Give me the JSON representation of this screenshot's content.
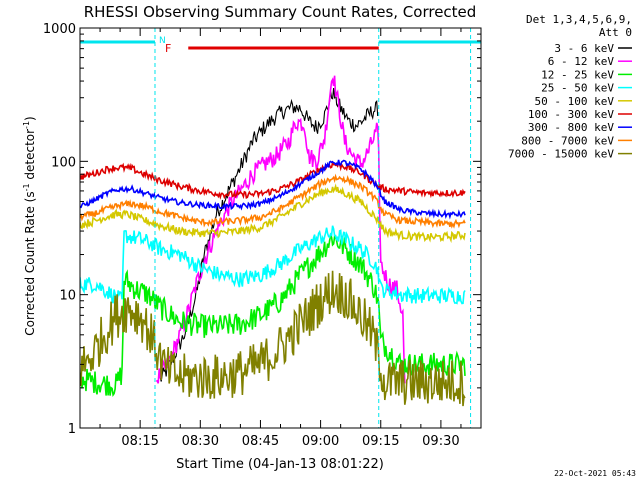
{
  "chart_data": {
    "type": "line",
    "title": "RHESSI Observing Summary Count Rates, Corrected",
    "xlabel": "Start Time (04-Jan-13 08:01:22)",
    "ylabel_main": "Corrected Count Rate (s",
    "ylabel_sup1": "-1",
    "ylabel_mid": " detector",
    "ylabel_sup2": "-1",
    "ylabel_end": ")",
    "x_unit": "minutes after 08:00 UT",
    "xlim": [
      0,
      100
    ],
    "x_ticks": [
      {
        "value": 15,
        "label": "08:15"
      },
      {
        "value": 30,
        "label": "08:30"
      },
      {
        "value": 45,
        "label": "08:45"
      },
      {
        "value": 60,
        "label": "09:00"
      },
      {
        "value": 75,
        "label": "09:15"
      },
      {
        "value": 90,
        "label": "09:30"
      }
    ],
    "y_scale": "log",
    "ylim": [
      1,
      1000
    ],
    "y_ticks": [
      {
        "value": 1,
        "label": "1"
      },
      {
        "value": 10,
        "label": "10"
      },
      {
        "value": 100,
        "label": "100"
      },
      {
        "value": 1000,
        "label": "1000"
      }
    ],
    "legend_header": [
      "Det 1,3,4,5,6,9,",
      "Att 0"
    ],
    "legend_position": "right",
    "grid": false,
    "footer_date": "22-Oct-2021 05:43",
    "flags": {
      "night_label": "N",
      "flare_label": "F",
      "night_color": "#00e5ee",
      "flare_color": "#e00000",
      "night_segments": [
        [
          0,
          18.7
        ],
        [
          74.5,
          100
        ]
      ],
      "flare_segment": [
        27,
        74.5
      ],
      "data_gaps": [
        18.7,
        74.5,
        97.4
      ]
    },
    "series": [
      {
        "name": "3 - 6 keV",
        "color": "#000000",
        "noise": 0.06,
        "points": [
          [
            20,
            2.3
          ],
          [
            22,
            2.8
          ],
          [
            26,
            5
          ],
          [
            29,
            10
          ],
          [
            31,
            20
          ],
          [
            34,
            40
          ],
          [
            37,
            60
          ],
          [
            40,
            90
          ],
          [
            43,
            140
          ],
          [
            46,
            180
          ],
          [
            49,
            220
          ],
          [
            51,
            240
          ],
          [
            53,
            255
          ],
          [
            55,
            250
          ],
          [
            57,
            200
          ],
          [
            59,
            180
          ],
          [
            61,
            220
          ],
          [
            63,
            330
          ],
          [
            65,
            250
          ],
          [
            67,
            200
          ],
          [
            69,
            185
          ],
          [
            71,
            210
          ],
          [
            73,
            240
          ],
          [
            74.4,
            250
          ]
        ]
      },
      {
        "name": "6 - 12 keV",
        "color": "#ff00ff",
        "noise": 0.07,
        "points": [
          [
            19,
            2.3
          ],
          [
            22,
            3
          ],
          [
            26,
            6
          ],
          [
            29,
            12
          ],
          [
            31,
            18
          ],
          [
            34,
            30
          ],
          [
            37,
            45
          ],
          [
            40,
            60
          ],
          [
            43,
            80
          ],
          [
            46,
            95
          ],
          [
            49,
            110
          ],
          [
            52,
            140
          ],
          [
            54,
            200
          ],
          [
            56,
            190
          ],
          [
            57,
            110
          ],
          [
            59,
            100
          ],
          [
            61,
            150
          ],
          [
            63,
            470
          ],
          [
            64.5,
            260
          ],
          [
            66,
            140
          ],
          [
            68,
            110
          ],
          [
            70,
            95
          ],
          [
            72,
            120
          ],
          [
            74,
            170
          ],
          [
            74.4,
            150
          ],
          [
            75,
            17
          ],
          [
            77,
            12
          ],
          [
            79,
            11
          ],
          [
            80.5,
            7
          ],
          [
            81,
            2
          ]
        ]
      },
      {
        "name": "12 - 25 keV",
        "color": "#00ee00",
        "noise": 0.09,
        "points": [
          [
            -1,
            2.4
          ],
          [
            4,
            2.2
          ],
          [
            9,
            2.1
          ],
          [
            10.5,
            2.6
          ],
          [
            11,
            13
          ],
          [
            14,
            11
          ],
          [
            17,
            10
          ],
          [
            20,
            8
          ],
          [
            25,
            6.3
          ],
          [
            30,
            5.8
          ],
          [
            35,
            5.8
          ],
          [
            40,
            6
          ],
          [
            45,
            7
          ],
          [
            50,
            9
          ],
          [
            55,
            14
          ],
          [
            60,
            21
          ],
          [
            63,
            27
          ],
          [
            65,
            24
          ],
          [
            70,
            17
          ],
          [
            73,
            12
          ],
          [
            74.4,
            9
          ],
          [
            75,
            4.5
          ],
          [
            80,
            3
          ],
          [
            85,
            3
          ],
          [
            90,
            3
          ],
          [
            96,
            3
          ]
        ]
      },
      {
        "name": "25 - 50 keV",
        "color": "#00ffff",
        "noise": 0.06,
        "points": [
          [
            -1,
            12
          ],
          [
            4,
            12
          ],
          [
            8,
            10
          ],
          [
            10.5,
            9
          ],
          [
            11,
            28
          ],
          [
            15,
            26
          ],
          [
            18,
            24
          ],
          [
            20,
            22
          ],
          [
            25,
            20
          ],
          [
            30,
            16
          ],
          [
            35,
            14
          ],
          [
            40,
            13
          ],
          [
            45,
            14
          ],
          [
            50,
            17
          ],
          [
            55,
            22
          ],
          [
            60,
            27
          ],
          [
            63,
            29
          ],
          [
            66,
            26
          ],
          [
            70,
            22
          ],
          [
            73,
            18
          ],
          [
            74.4,
            15
          ],
          [
            75,
            11
          ],
          [
            80,
            10
          ],
          [
            85,
            9.8
          ],
          [
            90,
            9.8
          ],
          [
            96,
            9.8
          ]
        ]
      },
      {
        "name": "50 - 100 keV",
        "color": "#d4c800",
        "noise": 0.03,
        "points": [
          [
            -1,
            33
          ],
          [
            3,
            35
          ],
          [
            6,
            38
          ],
          [
            9,
            40
          ],
          [
            12,
            40
          ],
          [
            15,
            37
          ],
          [
            20,
            33
          ],
          [
            25,
            30
          ],
          [
            30,
            29
          ],
          [
            35,
            29
          ],
          [
            40,
            30
          ],
          [
            45,
            32
          ],
          [
            50,
            38
          ],
          [
            55,
            48
          ],
          [
            60,
            58
          ],
          [
            63,
            62
          ],
          [
            66,
            58
          ],
          [
            70,
            50
          ],
          [
            73,
            40
          ],
          [
            74.4,
            36
          ],
          [
            76,
            30
          ],
          [
            80,
            28
          ],
          [
            85,
            27
          ],
          [
            90,
            27
          ],
          [
            96,
            28
          ]
        ]
      },
      {
        "name": "100 - 300 keV",
        "color": "#dd0000",
        "noise": 0.025,
        "points": [
          [
            -1,
            75
          ],
          [
            3,
            80
          ],
          [
            7,
            88
          ],
          [
            10,
            90
          ],
          [
            13,
            88
          ],
          [
            16,
            80
          ],
          [
            20,
            72
          ],
          [
            25,
            65
          ],
          [
            30,
            60
          ],
          [
            35,
            57
          ],
          [
            40,
            56
          ],
          [
            45,
            57
          ],
          [
            50,
            62
          ],
          [
            55,
            72
          ],
          [
            60,
            88
          ],
          [
            63,
            95
          ],
          [
            66,
            92
          ],
          [
            70,
            82
          ],
          [
            73,
            70
          ],
          [
            74.4,
            65
          ],
          [
            76,
            62
          ],
          [
            80,
            60
          ],
          [
            85,
            58
          ],
          [
            90,
            58
          ],
          [
            96,
            58
          ]
        ]
      },
      {
        "name": "300 - 800 keV",
        "color": "#0000ff",
        "noise": 0.02,
        "points": [
          [
            -1,
            44
          ],
          [
            3,
            50
          ],
          [
            7,
            58
          ],
          [
            10,
            62
          ],
          [
            13,
            62
          ],
          [
            16,
            58
          ],
          [
            20,
            53
          ],
          [
            25,
            49
          ],
          [
            30,
            47
          ],
          [
            35,
            46
          ],
          [
            40,
            46
          ],
          [
            45,
            48
          ],
          [
            50,
            55
          ],
          [
            55,
            68
          ],
          [
            60,
            85
          ],
          [
            63,
            98
          ],
          [
            66,
            98
          ],
          [
            70,
            88
          ],
          [
            73,
            72
          ],
          [
            74.4,
            62
          ],
          [
            76,
            50
          ],
          [
            80,
            43
          ],
          [
            85,
            41
          ],
          [
            90,
            40
          ],
          [
            96,
            40
          ]
        ]
      },
      {
        "name": "800 - 7000 keV",
        "color": "#ff7f00",
        "noise": 0.025,
        "points": [
          [
            -1,
            38
          ],
          [
            3,
            40
          ],
          [
            7,
            44
          ],
          [
            10,
            47
          ],
          [
            13,
            48
          ],
          [
            16,
            46
          ],
          [
            20,
            42
          ],
          [
            25,
            38
          ],
          [
            30,
            35
          ],
          [
            35,
            35
          ],
          [
            40,
            36
          ],
          [
            45,
            38
          ],
          [
            50,
            44
          ],
          [
            55,
            55
          ],
          [
            60,
            68
          ],
          [
            63,
            75
          ],
          [
            66,
            74
          ],
          [
            70,
            65
          ],
          [
            73,
            55
          ],
          [
            74.4,
            48
          ],
          [
            76,
            40
          ],
          [
            80,
            36
          ],
          [
            85,
            35
          ],
          [
            90,
            34
          ],
          [
            96,
            34
          ]
        ]
      },
      {
        "name": "7000 - 15000 keV",
        "color": "#808000",
        "noise": 0.18,
        "points": [
          [
            -1,
            2.5
          ],
          [
            3,
            3.5
          ],
          [
            6,
            5
          ],
          [
            9,
            7
          ],
          [
            12,
            8
          ],
          [
            15,
            7
          ],
          [
            17,
            5.5
          ],
          [
            19,
            4
          ],
          [
            21,
            2.8
          ],
          [
            25,
            2.4
          ],
          [
            30,
            2.4
          ],
          [
            35,
            2.4
          ],
          [
            40,
            2.6
          ],
          [
            45,
            3
          ],
          [
            50,
            4
          ],
          [
            55,
            6
          ],
          [
            60,
            9
          ],
          [
            63,
            11
          ],
          [
            66,
            10
          ],
          [
            70,
            7
          ],
          [
            73,
            5
          ],
          [
            74.4,
            3.5
          ],
          [
            76,
            2.2
          ],
          [
            80,
            2.2
          ],
          [
            85,
            2.2
          ],
          [
            90,
            2.2
          ],
          [
            96,
            2.2
          ]
        ]
      }
    ]
  }
}
